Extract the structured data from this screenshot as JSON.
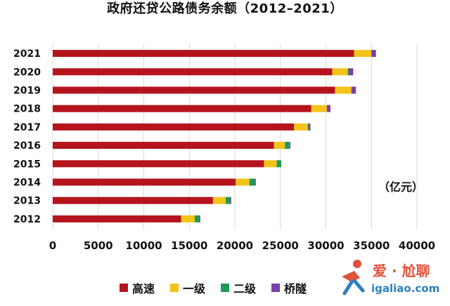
{
  "chart_data": {
    "type": "bar",
    "orientation": "horizontal",
    "stacked": true,
    "title": "政府还贷公路债务余额（2012–2021）",
    "unit_label": "（亿元）",
    "categories": [
      "2021",
      "2020",
      "2019",
      "2018",
      "2017",
      "2016",
      "2015",
      "2014",
      "2013",
      "2012"
    ],
    "series": [
      {
        "name": "高速",
        "color": "#b5141d",
        "values": [
          33100,
          30700,
          31000,
          28400,
          26500,
          24300,
          23200,
          20100,
          17600,
          14100
        ]
      },
      {
        "name": "一级",
        "color": "#f3c319",
        "values": [
          1900,
          1700,
          1800,
          1700,
          1500,
          1200,
          1400,
          1500,
          1400,
          1500
        ]
      },
      {
        "name": "二级",
        "color": "#1f9a57",
        "values": [
          0,
          100,
          0,
          0,
          100,
          500,
          500,
          600,
          500,
          500
        ]
      },
      {
        "name": "桥隧",
        "color": "#7a3fa6",
        "values": [
          500,
          500,
          500,
          400,
          200,
          100,
          0,
          100,
          100,
          100
        ]
      }
    ],
    "x_ticks": [
      0,
      5000,
      10000,
      15000,
      20000,
      25000,
      30000,
      35000,
      40000
    ],
    "xlim": [
      0,
      40000
    ],
    "grid": "vertical",
    "legend_position": "bottom"
  },
  "watermark": {
    "line1": "爱 · 尬聊",
    "line2": "igaliao.com"
  }
}
